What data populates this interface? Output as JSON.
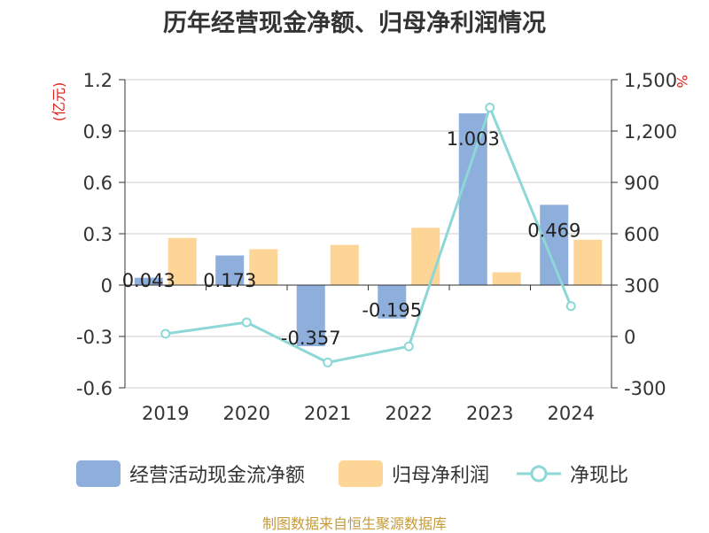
{
  "title": "历年经营现金净额、归母净利润情况",
  "source_note": "制图数据来自恒生聚源数据库",
  "colors": {
    "cash": "#8eaedb",
    "profit": "#fdd596",
    "ratio": "#8dd7d7",
    "unit": "#e0201b",
    "axis": "#333333",
    "grid": "#cccccc"
  },
  "chart_data": {
    "type": "bar",
    "categories": [
      "2019",
      "2020",
      "2021",
      "2022",
      "2023",
      "2024"
    ],
    "left_unit": "(亿元)",
    "right_unit": "%",
    "y_left": {
      "min": -0.6,
      "max": 1.2,
      "ticks": [
        "-0.6",
        "-0.3",
        "0",
        "0.3",
        "0.6",
        "0.9",
        "1.2"
      ]
    },
    "y_right": {
      "min": -300,
      "max": 1500,
      "ticks": [
        "-300",
        "0",
        "300",
        "600",
        "900",
        "1,200",
        "1,500"
      ]
    },
    "grid": true,
    "legend_position": "bottom",
    "series": [
      {
        "name": "经营活动现金流净额",
        "type": "bar",
        "axis": "left",
        "values": [
          0.043,
          0.173,
          -0.357,
          -0.195,
          1.003,
          0.469
        ],
        "labels": [
          "0.043",
          "0.173",
          "-0.357",
          "-0.195",
          "1.003",
          "0.469"
        ]
      },
      {
        "name": "归母净利润",
        "type": "bar",
        "axis": "left",
        "values": [
          0.275,
          0.21,
          0.235,
          0.335,
          0.075,
          0.265
        ]
      },
      {
        "name": "净现比",
        "type": "line",
        "axis": "right",
        "values": [
          15.6,
          82.4,
          -151.9,
          -58.2,
          1337.3,
          177.0
        ]
      }
    ]
  }
}
